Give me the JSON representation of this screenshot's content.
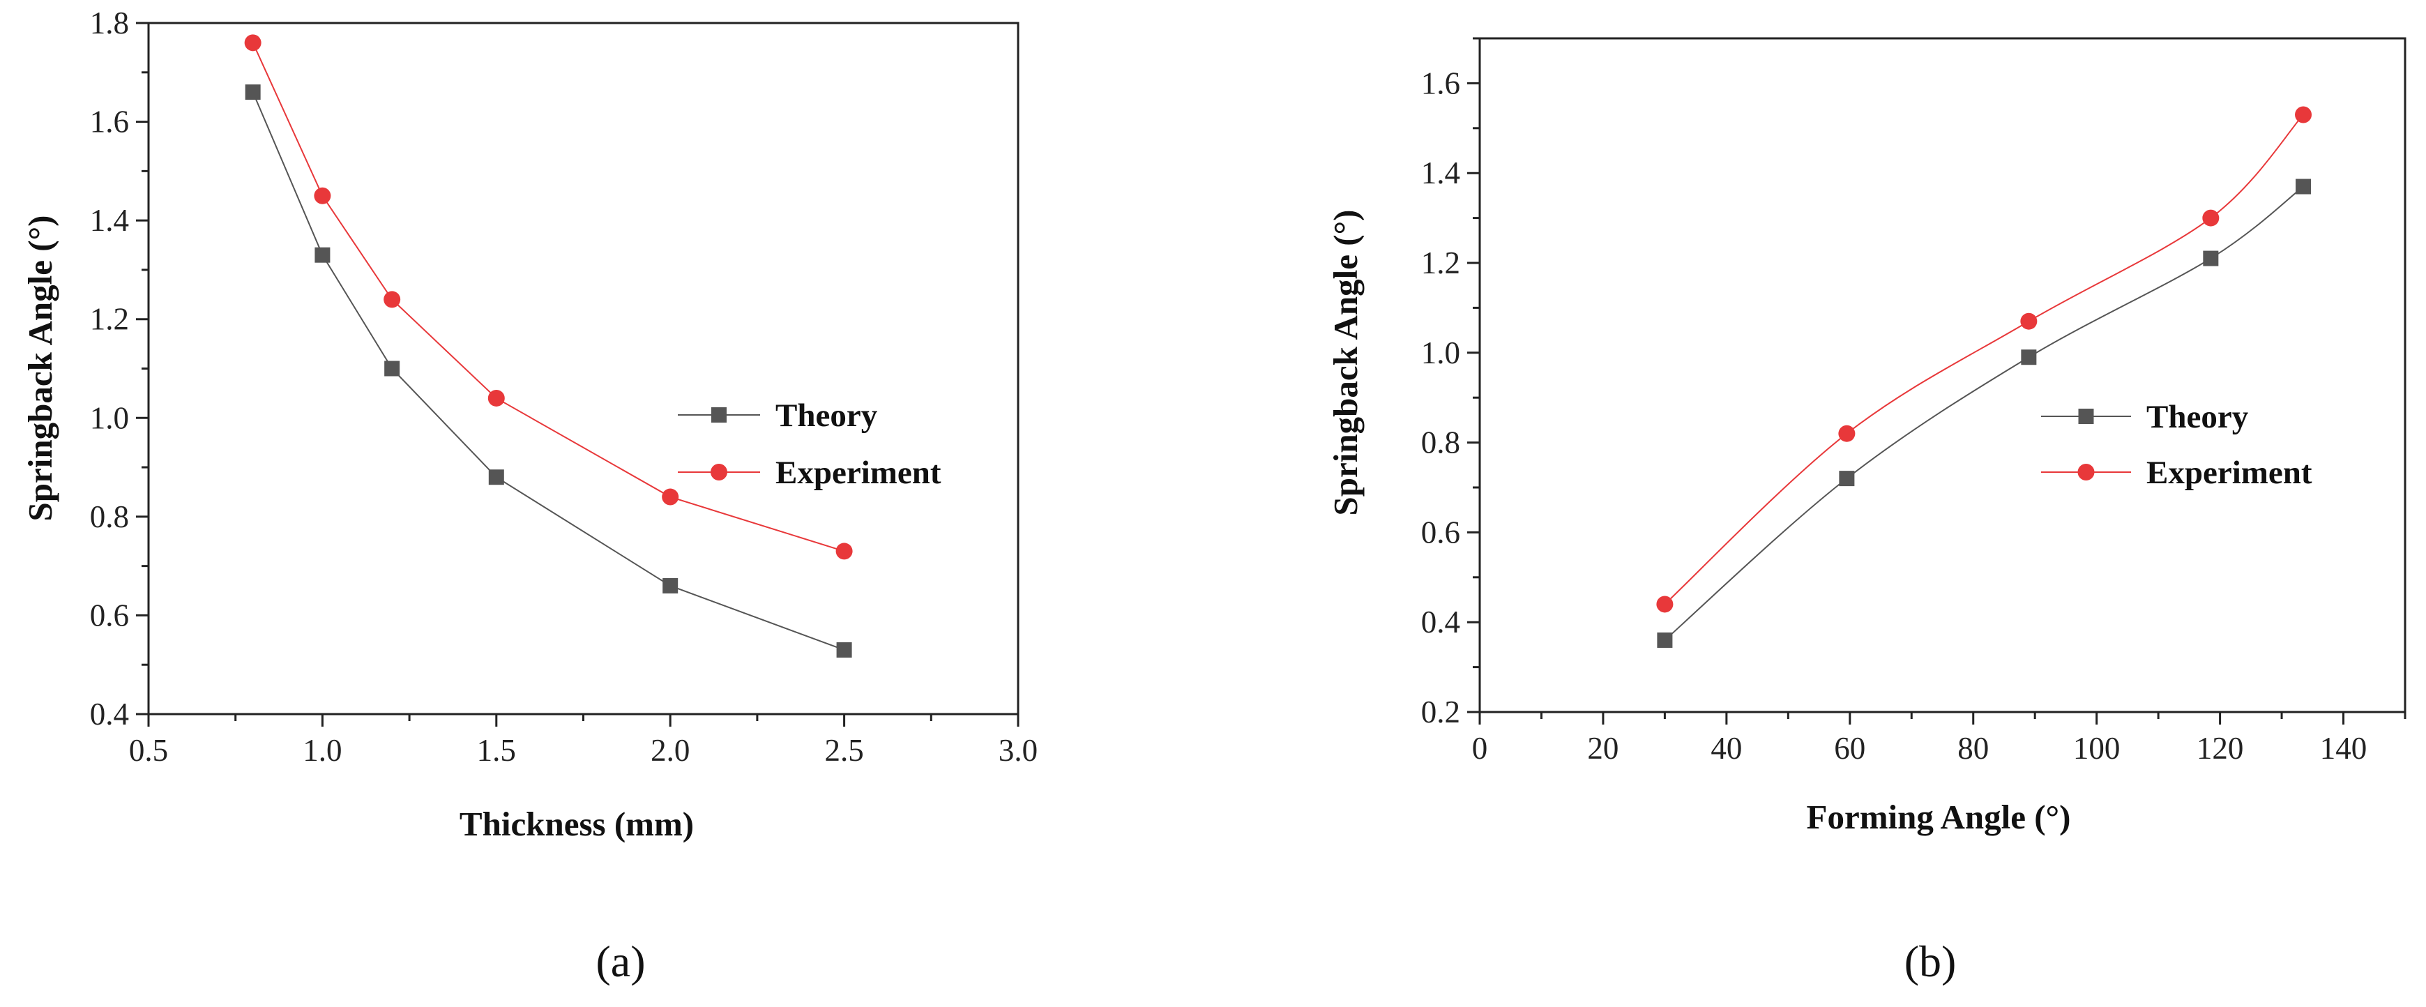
{
  "colors": {
    "theory": "#555555",
    "experiment": "#e8383a",
    "axis": "#222222"
  },
  "chart_data": [
    {
      "id": "a",
      "type": "line",
      "caption": "(a)",
      "xlabel": "Thickness (mm)",
      "ylabel": "Springback Angle (°)",
      "xlim": [
        0.5,
        3.0
      ],
      "ylim": [
        0.4,
        1.8
      ],
      "xticks": [
        0.5,
        1.0,
        1.5,
        2.0,
        2.5,
        3.0
      ],
      "yticks": [
        0.4,
        0.6,
        0.8,
        1.0,
        1.2,
        1.4,
        1.6,
        1.8
      ],
      "tick_decimals": 1,
      "grid": false,
      "legend_position": "center-right",
      "curve": "linear",
      "series": [
        {
          "name": "Theory",
          "marker": "square",
          "x": [
            0.8,
            1.0,
            1.2,
            1.5,
            2.0,
            2.5
          ],
          "y": [
            1.66,
            1.33,
            1.1,
            0.88,
            0.66,
            0.53
          ]
        },
        {
          "name": "Experiment",
          "marker": "circle",
          "x": [
            0.8,
            1.0,
            1.2,
            1.5,
            2.0,
            2.5
          ],
          "y": [
            1.76,
            1.45,
            1.24,
            1.04,
            0.84,
            0.73
          ]
        }
      ]
    },
    {
      "id": "b",
      "type": "line",
      "caption": "(b)",
      "xlabel": "Forming Angle (°)",
      "ylabel": "Springback Angle (°)",
      "xlim": [
        0,
        150
      ],
      "ylim": [
        0.2,
        1.7
      ],
      "xticks": [
        0,
        20,
        40,
        60,
        80,
        100,
        120,
        140
      ],
      "yticks": [
        0.2,
        0.4,
        0.6,
        0.8,
        1.0,
        1.2,
        1.4,
        1.6
      ],
      "tick_decimals": 0,
      "ytick_decimals": 1,
      "grid": false,
      "legend_position": "center-right",
      "curve": "smooth",
      "series": [
        {
          "name": "Theory",
          "marker": "square",
          "x": [
            30,
            59.5,
            89,
            118.5,
            133.5
          ],
          "y": [
            0.36,
            0.72,
            0.99,
            1.21,
            1.37
          ]
        },
        {
          "name": "Experiment",
          "marker": "circle",
          "x": [
            30,
            59.5,
            89,
            118.5,
            133.5
          ],
          "y": [
            0.44,
            0.82,
            1.07,
            1.3,
            1.53
          ]
        }
      ]
    }
  ]
}
